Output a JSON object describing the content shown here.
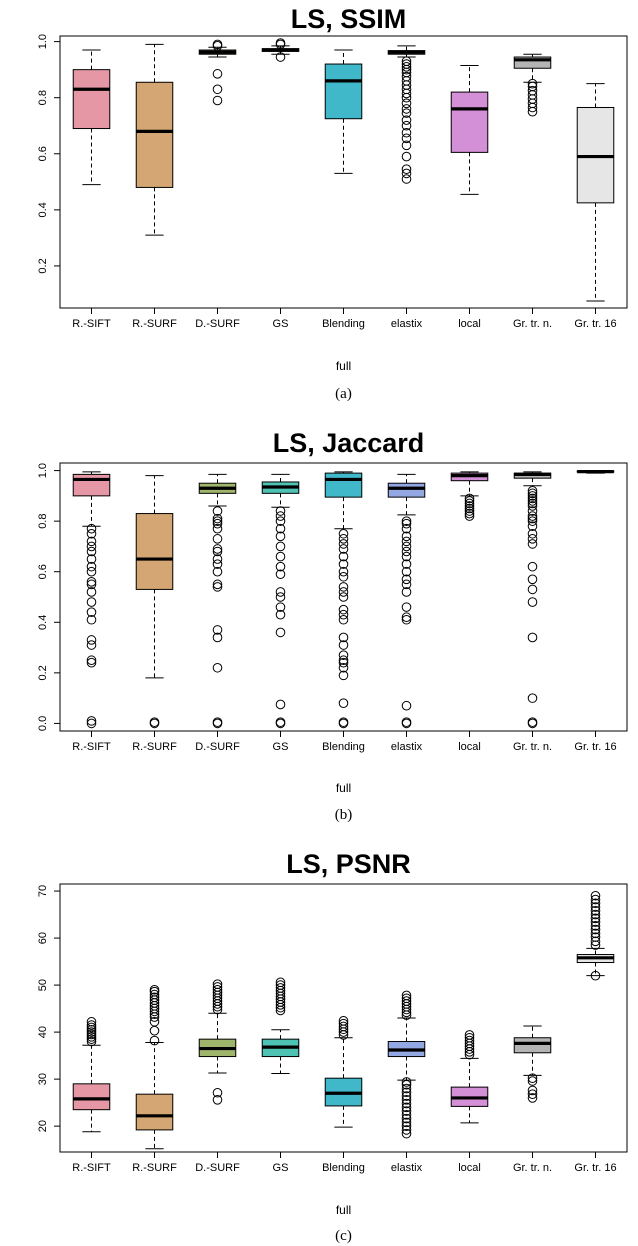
{
  "categories": [
    "R.-SIFT",
    "R.-SURF",
    "D.-SURF",
    "GS",
    "Blending",
    "elastix",
    "local",
    "Gr. tr. n.",
    "Gr. tr. 16"
  ],
  "colors": [
    "#e597a6",
    "#d4a673",
    "#9fb56b",
    "#4ec2b3",
    "#41b8c9",
    "#93a8e3",
    "#d490d6",
    "#b4b4b4",
    "#e6e6e6"
  ],
  "chart_data": [
    {
      "type": "box",
      "title": "LS, SSIM",
      "xlabel": "full",
      "caption": "(a)",
      "ylim": [
        0.05,
        1.02
      ],
      "yticks": [
        0.2,
        0.4,
        0.6,
        0.8,
        1.0
      ],
      "ytick_labels": [
        "0.2",
        "0.4",
        "0.6",
        "0.8",
        "1.0"
      ],
      "boxes": [
        {
          "name": "R.-SIFT",
          "lw": 0.49,
          "q1": 0.69,
          "med": 0.83,
          "q3": 0.9,
          "uw": 0.97,
          "outliers": []
        },
        {
          "name": "R.-SURF",
          "lw": 0.31,
          "q1": 0.48,
          "med": 0.68,
          "q3": 0.855,
          "uw": 0.99,
          "outliers": []
        },
        {
          "name": "D.-SURF",
          "lw": 0.945,
          "q1": 0.955,
          "med": 0.962,
          "q3": 0.97,
          "uw": 0.98,
          "outliers": [
            0.79,
            0.83,
            0.885,
            0.985,
            0.99
          ]
        },
        {
          "name": "GS",
          "lw": 0.955,
          "q1": 0.965,
          "med": 0.97,
          "q3": 0.975,
          "uw": 0.985,
          "outliers": [
            0.945,
            0.99,
            0.995
          ]
        },
        {
          "name": "Blending",
          "lw": 0.53,
          "q1": 0.725,
          "med": 0.86,
          "q3": 0.92,
          "uw": 0.97,
          "outliers": []
        },
        {
          "name": "elastix",
          "lw": 0.945,
          "q1": 0.955,
          "med": 0.962,
          "q3": 0.968,
          "uw": 0.985,
          "outliers": [
            0.51,
            0.53,
            0.545,
            0.59,
            0.63,
            0.655,
            0.675,
            0.7,
            0.72,
            0.745,
            0.76,
            0.78,
            0.8,
            0.815,
            0.83,
            0.845,
            0.86,
            0.875,
            0.89,
            0.9,
            0.91,
            0.92,
            0.93
          ]
        },
        {
          "name": "local",
          "lw": 0.455,
          "q1": 0.605,
          "med": 0.76,
          "q3": 0.82,
          "uw": 0.915,
          "outliers": []
        },
        {
          "name": "Gr. tr. n.",
          "lw": 0.855,
          "q1": 0.905,
          "med": 0.935,
          "q3": 0.945,
          "uw": 0.955,
          "outliers": [
            0.75,
            0.765,
            0.78,
            0.795,
            0.81,
            0.825,
            0.84,
            0.85
          ]
        },
        {
          "name": "Gr. tr. 16",
          "lw": 0.075,
          "q1": 0.425,
          "med": 0.59,
          "q3": 0.765,
          "uw": 0.85,
          "outliers": []
        }
      ]
    },
    {
      "type": "box",
      "title": "LS, Jaccard",
      "xlabel": "full",
      "caption": "(b)",
      "ylim": [
        -0.03,
        1.03
      ],
      "yticks": [
        0.0,
        0.2,
        0.4,
        0.6,
        0.8,
        1.0
      ],
      "ytick_labels": [
        "0.0",
        "0.2",
        "0.4",
        "0.6",
        "0.8",
        "1.0"
      ],
      "boxes": [
        {
          "name": "R.-SIFT",
          "lw": 0.78,
          "q1": 0.9,
          "med": 0.965,
          "q3": 0.985,
          "uw": 0.995,
          "outliers": [
            0.0,
            0.01,
            0.24,
            0.25,
            0.31,
            0.33,
            0.41,
            0.44,
            0.48,
            0.52,
            0.55,
            0.56,
            0.6,
            0.62,
            0.65,
            0.68,
            0.7,
            0.72,
            0.75,
            0.77
          ]
        },
        {
          "name": "R.-SURF",
          "lw": 0.18,
          "q1": 0.53,
          "med": 0.65,
          "q3": 0.83,
          "uw": 0.98,
          "outliers": [
            0.0,
            0.005
          ]
        },
        {
          "name": "D.-SURF",
          "lw": 0.86,
          "q1": 0.91,
          "med": 0.93,
          "q3": 0.95,
          "uw": 0.985,
          "outliers": [
            0.0,
            0.005,
            0.22,
            0.34,
            0.37,
            0.54,
            0.55,
            0.6,
            0.63,
            0.65,
            0.68,
            0.69,
            0.73,
            0.77,
            0.79,
            0.8,
            0.81,
            0.84
          ]
        },
        {
          "name": "GS",
          "lw": 0.855,
          "q1": 0.91,
          "med": 0.935,
          "q3": 0.955,
          "uw": 0.985,
          "outliers": [
            0.0,
            0.005,
            0.075,
            0.36,
            0.43,
            0.46,
            0.5,
            0.52,
            0.59,
            0.62,
            0.66,
            0.7,
            0.74,
            0.77,
            0.8,
            0.82,
            0.84
          ]
        },
        {
          "name": "Blending",
          "lw": 0.77,
          "q1": 0.895,
          "med": 0.965,
          "q3": 0.99,
          "uw": 0.995,
          "outliers": [
            0.0,
            0.005,
            0.08,
            0.19,
            0.22,
            0.24,
            0.25,
            0.27,
            0.31,
            0.34,
            0.41,
            0.43,
            0.45,
            0.5,
            0.52,
            0.54,
            0.58,
            0.6,
            0.63,
            0.66,
            0.69,
            0.71,
            0.73,
            0.75
          ]
        },
        {
          "name": "elastix",
          "lw": 0.825,
          "q1": 0.895,
          "med": 0.93,
          "q3": 0.95,
          "uw": 0.985,
          "outliers": [
            0.0,
            0.005,
            0.07,
            0.41,
            0.42,
            0.46,
            0.52,
            0.55,
            0.57,
            0.6,
            0.63,
            0.66,
            0.68,
            0.7,
            0.72,
            0.74,
            0.77,
            0.79,
            0.8
          ]
        },
        {
          "name": "local",
          "lw": 0.9,
          "q1": 0.96,
          "med": 0.98,
          "q3": 0.99,
          "uw": 0.995,
          "outliers": [
            0.82,
            0.83,
            0.84,
            0.85,
            0.86,
            0.87,
            0.88,
            0.89
          ]
        },
        {
          "name": "Gr. tr. n.",
          "lw": 0.94,
          "q1": 0.97,
          "med": 0.985,
          "q3": 0.99,
          "uw": 0.995,
          "outliers": [
            0.0,
            0.005,
            0.1,
            0.34,
            0.48,
            0.53,
            0.57,
            0.62,
            0.71,
            0.73,
            0.75,
            0.78,
            0.8,
            0.81,
            0.82,
            0.84,
            0.86,
            0.87,
            0.88,
            0.89,
            0.9,
            0.91,
            0.92
          ]
        },
        {
          "name": "Gr. tr. 16",
          "lw": 0.99,
          "q1": 0.994,
          "med": 0.996,
          "q3": 0.998,
          "uw": 0.999,
          "outliers": []
        }
      ]
    },
    {
      "type": "box",
      "title": "LS, PSNR",
      "xlabel": "full",
      "caption": "(c)",
      "ylim": [
        14.5,
        71.5
      ],
      "yticks": [
        20,
        30,
        40,
        50,
        60,
        70
      ],
      "ytick_labels": [
        "20",
        "30",
        "40",
        "50",
        "60",
        "70"
      ],
      "boxes": [
        {
          "name": "R.-SIFT",
          "lw": 18.8,
          "q1": 23.5,
          "med": 25.8,
          "q3": 29.0,
          "uw": 37.2,
          "outliers": [
            38.0,
            38.5,
            39.0,
            39.5,
            40.0,
            40.5,
            41.0,
            41.5,
            42.2
          ]
        },
        {
          "name": "R.-SURF",
          "lw": 15.2,
          "q1": 19.2,
          "med": 22.2,
          "q3": 26.8,
          "uw": 37.8,
          "outliers": [
            38.2,
            40.3,
            42.2,
            43.2,
            43.8,
            44.4,
            45.0,
            45.6,
            46.2,
            46.8,
            47.4,
            48.0,
            48.6,
            49.0
          ]
        },
        {
          "name": "D.-SURF",
          "lw": 31.3,
          "q1": 34.8,
          "med": 36.5,
          "q3": 38.5,
          "uw": 44.0,
          "outliers": [
            25.6,
            27.1,
            44.8,
            45.4,
            46.0,
            46.6,
            47.2,
            47.8,
            48.4,
            49.0,
            49.6,
            50.2
          ]
        },
        {
          "name": "GS",
          "lw": 31.2,
          "q1": 34.8,
          "med": 36.8,
          "q3": 38.5,
          "uw": 40.5,
          "outliers": [
            44.6,
            45.2,
            45.8,
            46.4,
            47.0,
            47.6,
            48.2,
            48.8,
            49.4,
            50.0,
            50.6
          ]
        },
        {
          "name": "Blending",
          "lw": 19.8,
          "q1": 24.3,
          "med": 27.0,
          "q3": 30.2,
          "uw": 38.8,
          "outliers": [
            39.4,
            40.0,
            40.6,
            41.2,
            41.8,
            42.4
          ]
        },
        {
          "name": "elastix",
          "lw": 29.8,
          "q1": 34.8,
          "med": 36.2,
          "q3": 38.0,
          "uw": 43.0,
          "outliers": [
            18.4,
            19.2,
            20.0,
            20.8,
            21.6,
            22.4,
            23.2,
            24.0,
            24.8,
            25.6,
            26.4,
            27.2,
            28.0,
            28.8,
            29.4,
            43.6,
            44.2,
            44.8,
            45.4,
            46.0,
            46.6,
            47.2,
            47.8
          ]
        },
        {
          "name": "local",
          "lw": 20.7,
          "q1": 24.2,
          "med": 26.0,
          "q3": 28.3,
          "uw": 34.4,
          "outliers": [
            35.2,
            35.8,
            36.4,
            37.0,
            37.6,
            38.2,
            38.8,
            39.4
          ]
        },
        {
          "name": "Gr. tr. n.",
          "lw": 30.8,
          "q1": 35.6,
          "med": 37.6,
          "q3": 38.8,
          "uw": 41.3,
          "outliers": [
            26.0,
            26.8,
            27.6,
            29.6,
            30.2
          ]
        },
        {
          "name": "Gr. tr. 16",
          "lw": 52.0,
          "q1": 54.8,
          "med": 55.8,
          "q3": 56.5,
          "uw": 57.8,
          "outliers": [
            52.0,
            58.5,
            59.3,
            60.2,
            61.0,
            61.8,
            62.6,
            63.4,
            64.2,
            65.0,
            65.8,
            66.6,
            67.4,
            68.2,
            69.0
          ]
        }
      ]
    }
  ]
}
